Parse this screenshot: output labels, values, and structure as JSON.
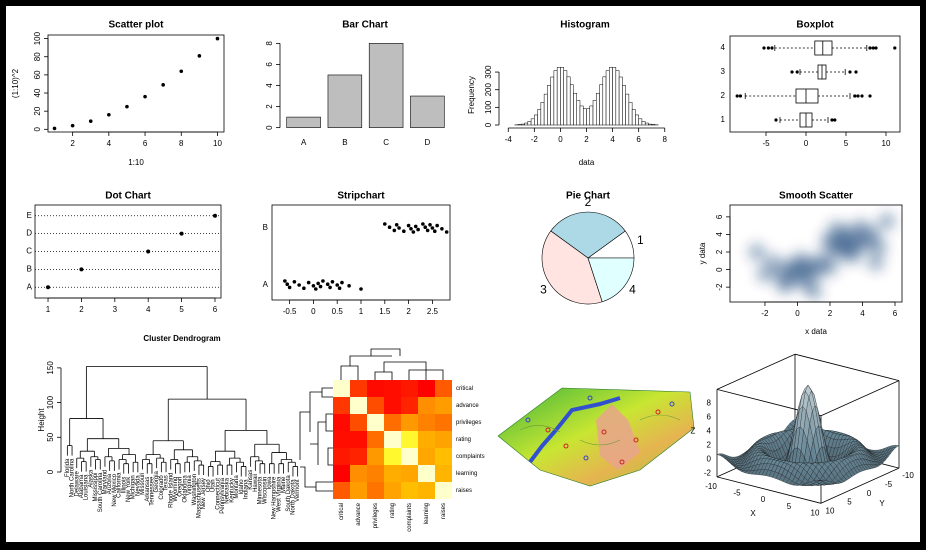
{
  "chart_data": [
    {
      "type": "scatter",
      "title": "Scatter plot",
      "x_label": "1:10",
      "y_label": "(1:10)^2",
      "x": [
        1,
        2,
        3,
        4,
        5,
        6,
        7,
        8,
        9,
        10
      ],
      "values": [
        1,
        4,
        9,
        16,
        25,
        36,
        49,
        64,
        81,
        100
      ],
      "xlim": [
        0.64,
        10.36
      ],
      "ylim": [
        -2.96,
        103.96
      ],
      "xticks": [
        2,
        4,
        6,
        8,
        10
      ],
      "yticks": [
        0,
        20,
        40,
        60,
        80,
        100
      ],
      "color": "#000000"
    },
    {
      "type": "bar",
      "title": "Bar Chart",
      "categories": [
        "A",
        "B",
        "C",
        "D"
      ],
      "values": [
        1,
        5,
        8,
        3
      ],
      "ylim": [
        -0.32,
        8.32
      ],
      "yticks": [
        0,
        2,
        4,
        6,
        8
      ],
      "color": "#bebebe"
    },
    {
      "type": "histogram",
      "title": "Histogram",
      "x_label": "data",
      "y_label": "Frequency",
      "bins": [
        -4,
        -3.75,
        -3.5,
        -3.25,
        -3,
        -2.75,
        -2.5,
        -2.25,
        -2,
        -1.75,
        -1.5,
        -1.25,
        -1,
        -0.75,
        -0.5,
        -0.25,
        0,
        0.25,
        0.5,
        0.75,
        1,
        1.25,
        1.5,
        1.75,
        2,
        2.25,
        2.5,
        2.75,
        3,
        3.25,
        3.5,
        3.75,
        4,
        4.25,
        4.5,
        4.75,
        5,
        5.25,
        5.5,
        5.75,
        6,
        6.25,
        6.5,
        6.75,
        7,
        7.25,
        7.5,
        7.75,
        8
      ],
      "values": [
        0,
        0,
        1,
        3,
        5,
        11,
        20,
        35,
        57,
        88,
        128,
        175,
        225,
        272,
        308,
        327,
        327,
        308,
        273,
        228,
        180,
        139,
        108,
        92,
        92,
        108,
        139,
        180,
        228,
        273,
        308,
        327,
        327,
        308,
        272,
        225,
        175,
        128,
        88,
        57,
        35,
        20,
        11,
        5,
        3,
        1,
        0,
        0
      ],
      "xlim": [
        -4.48,
        8.48
      ],
      "ylim": [
        0,
        340
      ],
      "xticks": [
        -4,
        -2,
        0,
        2,
        4,
        6,
        8
      ],
      "yticks": [
        0,
        100,
        200,
        300
      ],
      "color": "#ffffff"
    },
    {
      "type": "boxplot",
      "title": "Boxplot",
      "categories": [
        "1",
        "2",
        "3",
        "4"
      ],
      "boxes": [
        {
          "low": -3.25,
          "q1": -0.75,
          "median": 0,
          "q3": 0.75,
          "high": 2.75,
          "outliers": [
            -3.75,
            3.25,
            3.6
          ]
        },
        {
          "low": -7.6,
          "q1": -1.25,
          "median": 0,
          "q3": 1.5,
          "high": 5.5,
          "outliers": [
            -8.6,
            -8.2,
            6.1,
            6.5,
            7,
            8
          ]
        },
        {
          "low": -0.75,
          "q1": 1.5,
          "median": 2,
          "q3": 2.5,
          "high": 4.9,
          "outliers": [
            -1.75,
            -1.1,
            5.5,
            6.25
          ]
        },
        {
          "low": -3.9,
          "q1": 1.1,
          "median": 2.1,
          "q3": 3.25,
          "high": 7.6,
          "outliers": [
            -5.25,
            -4.7,
            -4.25,
            8,
            8.4,
            8.75,
            11.1
          ]
        }
      ],
      "xlim": [
        -9.5,
        11.75
      ],
      "xticks": [
        -5,
        0,
        5,
        10
      ]
    },
    {
      "type": "dot",
      "title": "Dot Chart",
      "categories": [
        "A",
        "B",
        "C",
        "D",
        "E"
      ],
      "values": [
        1,
        2,
        4,
        5,
        6
      ],
      "xlim": [
        0.61,
        6.18
      ],
      "xticks": [
        1,
        2,
        3,
        4,
        5,
        6
      ]
    },
    {
      "type": "strip",
      "title": "Stripchart",
      "categories": [
        "A",
        "B"
      ],
      "series": [
        {
          "name": "A",
          "values": [
            -0.6,
            -0.55,
            -0.5,
            -0.4,
            -0.3,
            -0.2,
            -0.1,
            0,
            0.05,
            0.1,
            0.15,
            0.2,
            0.3,
            0.35,
            0.4,
            0.5,
            0.55,
            0.6,
            0.75,
            1.0
          ]
        },
        {
          "name": "B",
          "values": [
            1.5,
            1.6,
            1.7,
            1.75,
            1.8,
            1.9,
            2.0,
            2.05,
            2.1,
            2.15,
            2.2,
            2.3,
            2.35,
            2.4,
            2.45,
            2.5,
            2.55,
            2.6,
            2.7,
            2.8
          ]
        }
      ],
      "xlim": [
        -0.87,
        2.87
      ],
      "xticks": [
        -0.5,
        0,
        0.5,
        1,
        1.5,
        2,
        2.5
      ]
    },
    {
      "type": "pie",
      "title": "Pie Chart",
      "categories": [
        "1",
        "2",
        "3",
        "4"
      ],
      "values": [
        10,
        30,
        40,
        20
      ],
      "colors": [
        "#ffffff",
        "#add8e6",
        "#ffe4e1",
        "#e0ffff"
      ]
    },
    {
      "type": "smoothscatter",
      "title": "Smooth Scatter",
      "x_label": "x data",
      "y_label": "y data",
      "x": [
        0,
        -0.5,
        0.4,
        -1,
        0.8,
        -0.3,
        1.2,
        -1.5,
        0.2,
        -0.8,
        1.5,
        -2,
        0.6,
        2,
        3,
        2.6,
        3.5,
        2.2,
        3.8,
        3.1,
        2.8,
        4.3,
        1.9,
        3.4,
        4.6,
        2.4,
        5,
        3.9,
        -2.5,
        5.5,
        1,
        4.8
      ],
      "values": [
        0,
        0.3,
        -0.4,
        -0.6,
        0.5,
        -1.2,
        -0.2,
        0.8,
        1.1,
        -1.8,
        1.0,
        -0.5,
        -1.5,
        0.3,
        3,
        3.4,
        2.6,
        2.4,
        3.6,
        4.2,
        2.0,
        3.0,
        3.3,
        1.6,
        4.1,
        4.6,
        2.6,
        4.8,
        2,
        5.5,
        -2.5,
        0.8
      ],
      "xlim": [
        -4.15,
        6.43
      ],
      "ylim": [
        -3.69,
        7.35
      ],
      "xticks": [
        -2,
        0,
        2,
        4,
        6
      ],
      "yticks": [
        -2,
        0,
        2,
        4,
        6
      ],
      "color": "#08306b"
    },
    {
      "type": "dendrogram",
      "title": "Cluster Dendrogram",
      "y_label": "Height",
      "ylim": [
        0,
        170
      ],
      "yticks": [
        0,
        50,
        100,
        150
      ],
      "tree": {
        "height": 152,
        "children": [
          {
            "height": 77,
            "children": [
              {
                "height": 38,
                "children": [
                  "Florida",
                  "North Carolina"
                ]
              },
              {
                "height": 48,
                "children": [
                  {
                    "height": 30,
                    "children": [
                      {
                        "height": 20,
                        "children": [
                          "Delaware",
                          {
                            "height": 15,
                            "children": [
                              "Alabama",
                              "Louisiana"
                            ]
                          }
                        ]
                      },
                      {
                        "height": 22,
                        "children": [
                          "Alaska",
                          {
                            "height": 18,
                            "children": [
                              "Mississippi",
                              "South Carolina"
                            ]
                          }
                        ]
                      }
                    ]
                  },
                  {
                    "height": 34,
                    "children": [
                      {
                        "height": 22,
                        "children": [
                          "Maryland",
                          {
                            "height": 16,
                            "children": [
                              "Arizona",
                              "New Mexico"
                            ]
                          }
                        ]
                      },
                      {
                        "height": 25,
                        "children": [
                          {
                            "height": 18,
                            "children": [
                              "California",
                              {
                                "height": 12,
                                "children": [
                                  "Illinois",
                                  "New York"
                                ]
                              }
                            ]
                          },
                          {
                            "height": 14,
                            "children": [
                              "Michigan",
                              "Nevada"
                            ]
                          }
                        ]
                      }
                    ]
                  }
                ]
              }
            ]
          },
          {
            "height": 105,
            "children": [
              {
                "height": 45,
                "children": [
                  {
                    "height": 25,
                    "children": [
                      {
                        "height": 18,
                        "children": [
                          "Missouri",
                          {
                            "height": 12,
                            "children": [
                              "Arkansas",
                              "Tennessee"
                            ]
                          }
                        ]
                      },
                      {
                        "height": 20,
                        "children": [
                          "Georgia",
                          {
                            "height": 14,
                            "children": [
                              "Colorado",
                              "Texas"
                            ]
                          }
                        ]
                      }
                    ]
                  },
                  {
                    "height": 32,
                    "children": [
                      {
                        "height": 18,
                        "children": [
                          "Rhode Island",
                          {
                            "height": 12,
                            "children": [
                              "Wyoming",
                              "Oregon"
                            ]
                          }
                        ]
                      },
                      {
                        "height": 22,
                        "children": [
                          {
                            "height": 14,
                            "children": [
                              "Oklahoma",
                              "Virginia"
                            ]
                          },
                          {
                            "height": 16,
                            "children": [
                              "Washington",
                              {
                                "height": 10,
                                "children": [
                                  "Massachusetts",
                                  "New Jersey"
                                ]
                              }
                            ]
                          }
                        ]
                      }
                    ]
                  }
                ]
              },
              {
                "height": 60,
                "children": [
                  {
                    "height": 30,
                    "children": [
                      {
                        "height": 15,
                        "children": [
                          {
                            "height": 8,
                            "children": [
                              "Ohio",
                              "Utah"
                            ]
                          },
                          {
                            "height": 10,
                            "children": [
                              "Connecticut",
                              "Pennsylvania"
                            ]
                          }
                        ]
                      },
                      {
                        "height": 20,
                        "children": [
                          {
                            "height": 10,
                            "children": [
                              "Nebraska",
                              "Kentucky"
                            ]
                          },
                          {
                            "height": 14,
                            "children": [
                              "Montana",
                              {
                                "height": 8,
                                "children": [
                                  "Idaho",
                                  "Indiana"
                                ]
                              }
                            ]
                          }
                        ]
                      }
                    ]
                  },
                  {
                    "height": 40,
                    "children": [
                      {
                        "height": 22,
                        "children": [
                          "Kansas",
                          {
                            "height": 16,
                            "children": [
                              "Hawaii",
                              {
                                "height": 12,
                                "children": [
                                  "Minnesota",
                                  "Wisconsin"
                                ]
                              }
                            ]
                          }
                        ]
                      },
                      {
                        "height": 28,
                        "children": [
                          {
                            "height": 12,
                            "children": [
                              "Iowa",
                              "New Hampshire"
                            ]
                          },
                          {
                            "height": 18,
                            "children": [
                              {
                                "height": 12,
                                "children": [
                                  "West Virginia",
                                  "Maine"
                                ]
                              },
                              {
                                "height": 14,
                                "children": [
                                  "South Dakota",
                                  {
                                    "height": 8,
                                    "children": [
                                      "North Dakota",
                                      "Vermont"
                                    ]
                                  }
                                ]
                              }
                            ]
                          }
                        ]
                      }
                    ]
                  }
                ]
              }
            ]
          }
        ]
      }
    },
    {
      "type": "heatmap",
      "rows": [
        "critical",
        "advance",
        "privileges",
        "rating",
        "complaints",
        "learning",
        "raises"
      ],
      "columns": [
        "critical",
        "advance",
        "privileges",
        "rating",
        "complaints",
        "learning",
        "raises"
      ],
      "matrix": [
        [
          1,
          0.28,
          0.15,
          0.16,
          0.19,
          0.12,
          0.38
        ],
        [
          0.28,
          1,
          0.34,
          0.16,
          0.22,
          0.53,
          0.57
        ],
        [
          0.15,
          0.34,
          1,
          0.43,
          0.56,
          0.49,
          0.45
        ],
        [
          0.16,
          0.16,
          0.43,
          1,
          0.83,
          0.62,
          0.59
        ],
        [
          0.19,
          0.22,
          0.56,
          0.83,
          1,
          0.6,
          0.67
        ],
        [
          0.12,
          0.53,
          0.49,
          0.62,
          0.6,
          1,
          0.64
        ],
        [
          0.38,
          0.57,
          0.45,
          0.59,
          0.67,
          0.64,
          1
        ]
      ]
    },
    {
      "type": "surface3d",
      "x_label": "X",
      "y_label": "Y",
      "z_label": "Z",
      "xticks": [
        -10,
        -5,
        0,
        5,
        10
      ],
      "yticks": [
        -10,
        -5,
        0,
        5,
        10
      ],
      "zticks": [
        -2,
        0,
        2,
        4,
        6,
        8
      ]
    }
  ]
}
